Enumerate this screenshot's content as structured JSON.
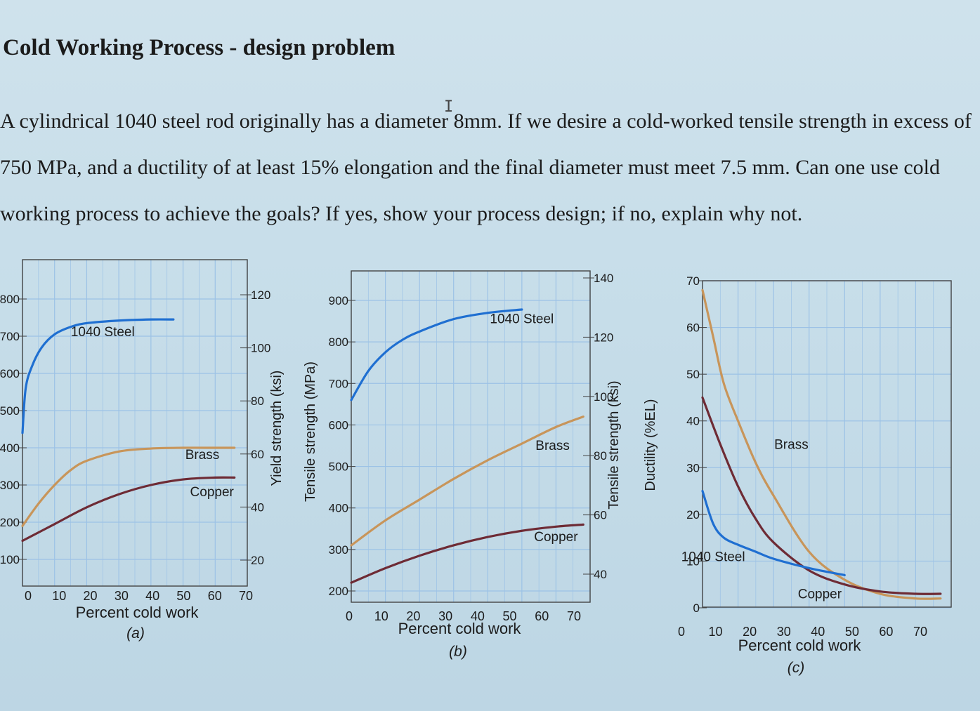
{
  "document": {
    "title": "Cold Working Process - design problem",
    "problem_text": "A cylindrical 1040 steel rod originally has a diameter 8mm. If we desire a cold-worked tensile strength in excess of 750 MPa, and a ductility of at least 15% elongation and the final diameter must meet 7.5 mm. Can one use cold working process to achieve the goals? If yes, show your process design; if no, explain why not."
  },
  "colors": {
    "steel": "#1f6fd1",
    "brass": "#c8955a",
    "copper": "#6e2b35",
    "grid": "#9cc2e6",
    "frame": "#444444"
  },
  "chart_data": [
    {
      "type": "line",
      "panel_label": "(a)",
      "xlabel": "Percent cold work",
      "ylabel_right": "Yield strength (ksi)",
      "xlim": [
        0,
        70
      ],
      "ylim_left": [
        100,
        800
      ],
      "ylim_right": [
        20,
        120
      ],
      "x_ticks": [
        0,
        10,
        20,
        30,
        40,
        50,
        60,
        70
      ],
      "y_ticks_left": [
        100,
        200,
        300,
        400,
        500,
        600,
        700,
        800
      ],
      "y_tick_labels_left": [
        "100",
        "200",
        "300",
        "400",
        "500",
        "600",
        "700",
        "800"
      ],
      "y_ticks_right": [
        20,
        40,
        60,
        80,
        100,
        120
      ],
      "series": [
        {
          "name": "1040 Steel",
          "color_key": "steel",
          "x": [
            0,
            1,
            3,
            6,
            10,
            15,
            20,
            30,
            40,
            47
          ],
          "y": [
            440,
            560,
            620,
            670,
            705,
            725,
            735,
            742,
            745,
            745
          ],
          "label_x": 25,
          "label_y": 700
        },
        {
          "name": "Brass",
          "color_key": "brass",
          "x": [
            0,
            5,
            10,
            15,
            20,
            30,
            40,
            50,
            60,
            66
          ],
          "y": [
            190,
            250,
            300,
            340,
            365,
            390,
            398,
            400,
            400,
            400
          ],
          "label_x": 56,
          "label_y": 370
        },
        {
          "name": "Copper",
          "color_key": "copper",
          "x": [
            0,
            10,
            20,
            30,
            40,
            50,
            60,
            66
          ],
          "y": [
            150,
            195,
            240,
            275,
            300,
            315,
            320,
            320
          ],
          "label_x": 59,
          "label_y": 270
        }
      ]
    },
    {
      "type": "line",
      "panel_label": "(b)",
      "xlabel": "Percent cold work",
      "ylabel_left": "Tensile strength (MPa)",
      "ylabel_right": "Tensile strength (ksi)",
      "xlim": [
        0,
        70
      ],
      "ylim_left": [
        200,
        900
      ],
      "ylim_right": [
        40,
        140
      ],
      "x_ticks": [
        0,
        10,
        20,
        30,
        40,
        50,
        60,
        70
      ],
      "y_ticks_left": [
        200,
        300,
        400,
        500,
        600,
        700,
        800,
        900
      ],
      "y_ticks_right": [
        40,
        60,
        80,
        100,
        120,
        140
      ],
      "series": [
        {
          "name": "1040 Steel",
          "color_key": "steel",
          "x": [
            0,
            5,
            10,
            15,
            20,
            30,
            40,
            50
          ],
          "y": [
            660,
            730,
            775,
            805,
            825,
            855,
            870,
            878
          ],
          "label_x": 50,
          "label_y": 845
        },
        {
          "name": "Brass",
          "color_key": "brass",
          "x": [
            0,
            10,
            20,
            30,
            40,
            50,
            60,
            68
          ],
          "y": [
            310,
            370,
            420,
            470,
            515,
            555,
            595,
            620
          ],
          "label_x": 59,
          "label_y": 540
        },
        {
          "name": "Copper",
          "color_key": "copper",
          "x": [
            0,
            10,
            20,
            30,
            40,
            50,
            60,
            68
          ],
          "y": [
            220,
            255,
            285,
            310,
            330,
            345,
            355,
            360
          ],
          "label_x": 60,
          "label_y": 320
        }
      ]
    },
    {
      "type": "line",
      "panel_label": "(c)",
      "xlabel": "Percent cold work",
      "ylabel_left": "Ductility (%EL)",
      "xlim": [
        0,
        70
      ],
      "ylim_left": [
        0,
        70
      ],
      "x_ticks": [
        0,
        10,
        20,
        30,
        40,
        50,
        60,
        70
      ],
      "y_ticks_left": [
        0,
        10,
        20,
        30,
        40,
        50,
        60,
        70
      ],
      "series": [
        {
          "name": "Brass",
          "color_key": "brass",
          "x": [
            0,
            3,
            6,
            10,
            15,
            20,
            30,
            40,
            50,
            60,
            67
          ],
          "y": [
            68,
            58,
            48,
            40,
            31,
            24,
            12,
            6,
            3,
            2,
            2
          ],
          "label_x": 25,
          "label_y": 34
        },
        {
          "name": "Copper",
          "color_key": "copper",
          "x": [
            0,
            5,
            10,
            15,
            20,
            30,
            40,
            50,
            60,
            67
          ],
          "y": [
            45,
            35,
            26,
            19,
            14,
            8,
            5,
            3.5,
            3,
            3
          ],
          "label_x": 33,
          "label_y": 2
        },
        {
          "name": "1040 Steel",
          "color_key": "steel",
          "x": [
            0,
            3,
            6,
            10,
            15,
            20,
            30,
            40
          ],
          "y": [
            25,
            18,
            15,
            13.5,
            12,
            10.5,
            8.5,
            7
          ],
          "label_x": 3,
          "label_y": 10
        }
      ]
    }
  ]
}
